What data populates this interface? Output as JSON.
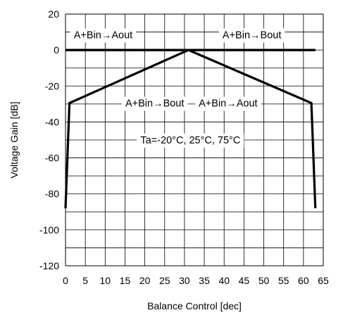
{
  "chart_data": {
    "type": "line",
    "title": "",
    "xlabel": "Balance Control [dec]",
    "ylabel": "Voltage Gain [dB]",
    "xlim": [
      0,
      65
    ],
    "ylim": [
      -120,
      20
    ],
    "x_ticks": [
      0,
      5,
      10,
      15,
      20,
      25,
      30,
      35,
      40,
      45,
      50,
      55,
      60,
      65
    ],
    "y_ticks": [
      20,
      0,
      -20,
      -40,
      -60,
      -80,
      -100,
      -120
    ],
    "grid": true,
    "series": [
      {
        "name": "A+Bin→Aout",
        "x": [
          0,
          1,
          31,
          63
        ],
        "y": [
          0,
          0,
          0,
          0
        ]
      },
      {
        "name": "A+Bin→Bout",
        "x": [
          0,
          1,
          31,
          63
        ],
        "y": [
          0,
          0,
          0,
          0
        ]
      },
      {
        "name": "A+Bin→Bout",
        "x": [
          0,
          1,
          31
        ],
        "y": [
          -88,
          -29.5,
          0
        ]
      },
      {
        "name": "A+Bin→Aout",
        "x": [
          31,
          62,
          63
        ],
        "y": [
          0,
          -29.5,
          -88
        ]
      }
    ],
    "annotations": [
      {
        "text": "A+Bin→Aout",
        "x": 9.5,
        "y": 8.5
      },
      {
        "text": "A+Bin→Bout",
        "x": 47,
        "y": 8.5
      },
      {
        "text": "A+Bin→Bout",
        "x": 22.5,
        "y": -29.5
      },
      {
        "text": "A+Bin→Aout",
        "x": 41,
        "y": -29.5
      },
      {
        "text": "Ta=-20°C, 25°C, 75°C",
        "x": 31.5,
        "y": -50
      }
    ]
  }
}
